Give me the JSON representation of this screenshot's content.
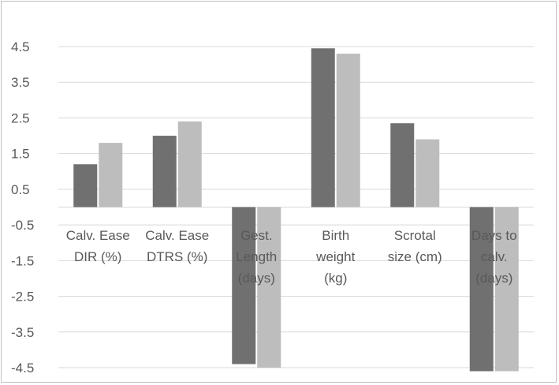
{
  "chart_data": {
    "type": "bar",
    "categories": [
      [
        "Calv. Ease",
        "DIR (%)"
      ],
      [
        "Calv. Ease",
        "DTRS (%)"
      ],
      [
        "Gest.",
        "Length",
        "(days)"
      ],
      [
        "Birth",
        "weight",
        "(kg)"
      ],
      [
        "Scrotal",
        "size (cm)"
      ],
      [
        "Days to",
        "calv.",
        "(days)"
      ]
    ],
    "series": [
      {
        "values": [
          1.2,
          2.0,
          -4.4,
          4.45,
          2.35,
          -4.6
        ]
      },
      {
        "values": [
          1.8,
          2.4,
          -4.5,
          4.3,
          1.9,
          -4.6
        ]
      }
    ],
    "yticks": [
      "4.5",
      "3.5",
      "2.5",
      "1.5",
      "0.5",
      "-0.5",
      "-1.5",
      "-2.5",
      "-3.5",
      "-4.5"
    ],
    "ylim": [
      -4.55,
      4.5
    ],
    "title": "",
    "xlabel": "",
    "ylabel": "",
    "grid": true,
    "legend": "none",
    "colors": [
      "#707070",
      "#bdbdbd"
    ],
    "gridColor": "#d9d9d9"
  }
}
